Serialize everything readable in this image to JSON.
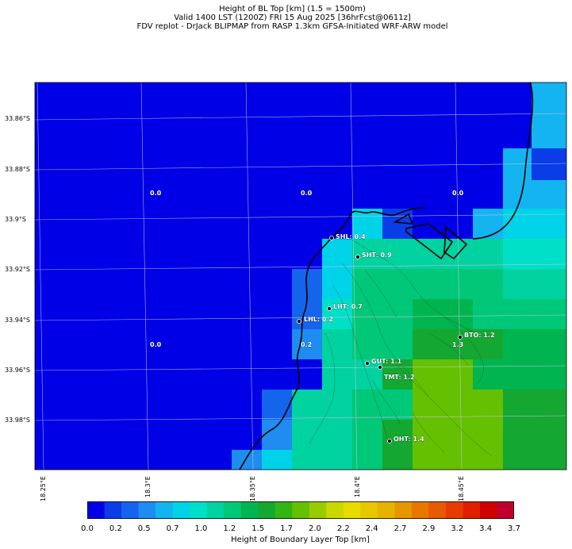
{
  "title": {
    "line1": "Height of BL Top [km] (1.5 = 1500m)",
    "line2": "Valid 1400 LST (1200Z) FRI 15 Aug 2025 [36hrFcst@0611z]",
    "line3": "FDV replot - DrJack BLIPMAP from RASP 1.3km GFSA-Initiated WRF-ARW model"
  },
  "lat_labels": [
    "33.86°S",
    "33.88°S",
    "33.9°S",
    "33.92°S",
    "33.94°S",
    "33.96°S",
    "33.98°S"
  ],
  "lon_labels": [
    "18.25°E",
    "18.3°E",
    "18.35°E",
    "18.4°E",
    "18.45°E"
  ],
  "points": [
    {
      "label": "SHL: 0.4",
      "marker": "circle"
    },
    {
      "label": "SHT: 0.9",
      "marker": "circle"
    },
    {
      "label": "LHT: 0.7",
      "marker": "circle"
    },
    {
      "label": "LHL: 0.2",
      "marker": "circle"
    },
    {
      "label": "BTO: 1.2",
      "marker": "circle"
    },
    {
      "label": "GUT: 1.1",
      "marker": "circle"
    },
    {
      "label": "TMT: 1.2",
      "marker": "circle"
    },
    {
      "label": "OHT: 1.4",
      "marker": "circle"
    }
  ],
  "grid_values": [
    "0.0",
    "0.0",
    "0.0",
    "0.0",
    "0.2",
    "1.3"
  ],
  "colorbar": {
    "label": "Height of Boundary Layer Top [km]",
    "ticks": [
      "0.0",
      "0.2",
      "0.5",
      "0.7",
      "1.0",
      "1.2",
      "1.5",
      "1.7",
      "2.0",
      "2.2",
      "2.4",
      "2.7",
      "2.9",
      "3.2",
      "3.4",
      "3.7"
    ],
    "colors": [
      "#0000e6",
      "#0a3ce8",
      "#1464ec",
      "#1e8cf0",
      "#14b4f0",
      "#00d2e8",
      "#00e0c8",
      "#00d2a0",
      "#00c878",
      "#00b450",
      "#14a832",
      "#32b414",
      "#64c000",
      "#96cc00",
      "#c8d800",
      "#e6dc00",
      "#e6c800",
      "#e6b400",
      "#e69600",
      "#e67800",
      "#e65a00",
      "#e63c00",
      "#e01e00",
      "#d00000",
      "#c0002a"
    ]
  }
}
